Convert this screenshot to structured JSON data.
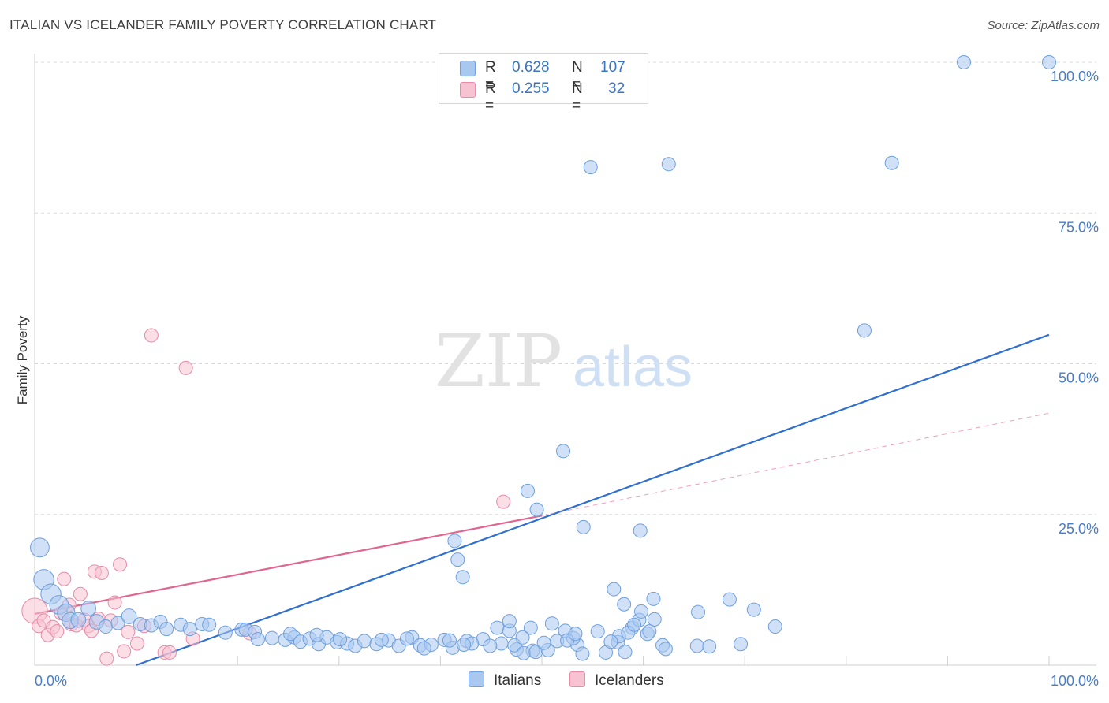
{
  "title": "ITALIAN VS ICELANDER FAMILY POVERTY CORRELATION CHART",
  "source": "Source: ZipAtlas.com",
  "watermark": {
    "zip": "ZIP",
    "atlas": "atlas"
  },
  "legend": {
    "rows": [
      {
        "r_label": "R =",
        "r_value": "0.628",
        "n_label": "N =",
        "n_value": "107"
      },
      {
        "r_label": "R =",
        "r_value": "0.255",
        "n_label": "N =",
        "n_value": "32"
      }
    ]
  },
  "bottom_legend": {
    "italians": "Italians",
    "icelanders": "Icelanders"
  },
  "colors": {
    "italians_fill": "#a9c8f0",
    "italians_stroke": "#6f9fdc",
    "italians_line": "#2f6fd0",
    "icelanders_fill": "#f7c2d2",
    "icelanders_stroke": "#e88aa8",
    "icelanders_line": "#e0668f",
    "axis_label": "#4a7cc4",
    "grid": "#d9d9d9"
  },
  "chart_data": {
    "type": "scatter",
    "title": "ITALIAN VS ICELANDER FAMILY POVERTY CORRELATION CHART",
    "xlabel": "",
    "ylabel": "Family Poverty",
    "xlim": [
      0,
      100
    ],
    "ylim": [
      0,
      100
    ],
    "x_tick_labels": [
      "0.0%",
      "100.0%"
    ],
    "y_ticks": [
      25,
      50,
      75,
      100
    ],
    "y_tick_labels": [
      "25.0%",
      "50.0%",
      "75.0%",
      "100.0%"
    ],
    "series": [
      {
        "name": "Italians",
        "R": 0.628,
        "N": 107,
        "trend": {
          "x": [
            10,
            100
          ],
          "y": [
            0,
            54.8
          ]
        },
        "points": [
          [
            0.5,
            19.5,
            1.4
          ],
          [
            0.9,
            14.2,
            1.5
          ],
          [
            1.6,
            11.8,
            1.5
          ],
          [
            2.4,
            10,
            1.4
          ],
          [
            3.1,
            8.7,
            1.3
          ],
          [
            3.5,
            7.4,
            1.2
          ],
          [
            4.3,
            7.5,
            1.1
          ],
          [
            5.3,
            9.4,
            1.1
          ],
          [
            6.1,
            7.2,
            1.1
          ],
          [
            7,
            6.4,
            1
          ],
          [
            8.2,
            7,
            1
          ],
          [
            9.3,
            8.1,
            1.1
          ],
          [
            10.4,
            6.8,
            1
          ],
          [
            11.5,
            6.6,
            1
          ],
          [
            12.4,
            7.2,
            1
          ],
          [
            13,
            6,
            1
          ],
          [
            14.4,
            6.7,
            1
          ],
          [
            15.3,
            6,
            1
          ],
          [
            16.5,
            6.8,
            1
          ],
          [
            17.2,
            6.7,
            1
          ],
          [
            18.8,
            5.4,
            1
          ],
          [
            20.4,
            5.9,
            1
          ],
          [
            20.8,
            5.9,
            1
          ],
          [
            21.7,
            5.5,
            1
          ],
          [
            22,
            4.3,
            1
          ],
          [
            23.4,
            4.5,
            1
          ],
          [
            24.7,
            4.2,
            1
          ],
          [
            25.6,
            4.6,
            1
          ],
          [
            26.2,
            3.9,
            1
          ],
          [
            27.1,
            4.4,
            1
          ],
          [
            28,
            3.5,
            1
          ],
          [
            28.8,
            4.6,
            1
          ],
          [
            29.8,
            3.8,
            1
          ],
          [
            30.8,
            3.6,
            1
          ],
          [
            31.6,
            3.2,
            1
          ],
          [
            32.5,
            4,
            1
          ],
          [
            33.7,
            3.5,
            1
          ],
          [
            34.9,
            4.1,
            1
          ],
          [
            35.9,
            3.2,
            1
          ],
          [
            37.2,
            4.6,
            1
          ],
          [
            38,
            3.3,
            1
          ],
          [
            39.1,
            3.4,
            1
          ],
          [
            40.4,
            4.2,
            1
          ],
          [
            41.2,
            2.9,
            1
          ],
          [
            42.6,
            4,
            1
          ],
          [
            44.2,
            4.3,
            1
          ],
          [
            46,
            3.6,
            1
          ],
          [
            47.5,
            2.6,
            1
          ],
          [
            49.1,
            2.4,
            1
          ],
          [
            38.4,
            2.8,
            1
          ],
          [
            43.1,
            3.6,
            1
          ],
          [
            45.6,
            6.2,
            1
          ],
          [
            46.8,
            5.7,
            1
          ],
          [
            47.3,
            3.3,
            1
          ],
          [
            48.2,
            2,
            1
          ],
          [
            49.4,
            2.2,
            1
          ],
          [
            50.6,
            2.5,
            1
          ],
          [
            51.5,
            4,
            1
          ],
          [
            52.3,
            5.7,
            1
          ],
          [
            53.5,
            3.4,
            1
          ],
          [
            54,
            1.9,
            1
          ],
          [
            56.3,
            2.1,
            1
          ],
          [
            57.5,
            3.8,
            1
          ],
          [
            58.2,
            2.2,
            1
          ],
          [
            58.9,
            6.2,
            1
          ],
          [
            59.6,
            7.5,
            1
          ],
          [
            60.4,
            5.2,
            1
          ],
          [
            61.9,
            3.3,
            1
          ],
          [
            46.8,
            7.3,
            1
          ],
          [
            48.9,
            6.2,
            1
          ],
          [
            51,
            6.9,
            1
          ],
          [
            53.1,
            4.5,
            1
          ],
          [
            55.5,
            5.6,
            1
          ],
          [
            57.6,
            4.8,
            1
          ],
          [
            52.5,
            4.1,
            1
          ],
          [
            25.2,
            5.2,
            1
          ],
          [
            27.8,
            5,
            1
          ],
          [
            30.1,
            4.3,
            1
          ],
          [
            34.2,
            4.2,
            1
          ],
          [
            36.7,
            4.4,
            1
          ],
          [
            40.9,
            4.1,
            1
          ],
          [
            42.3,
            3.4,
            1
          ],
          [
            44.9,
            3.2,
            1
          ],
          [
            48.1,
            4.6,
            1
          ],
          [
            50.2,
            3.7,
            1
          ],
          [
            53.3,
            5.2,
            1
          ],
          [
            56.8,
            3.9,
            1
          ],
          [
            58.5,
            5.4,
            1
          ],
          [
            59.1,
            6.7,
            1
          ],
          [
            61.1,
            7.6,
            1
          ],
          [
            62.2,
            2.7,
            1
          ],
          [
            65.4,
            8.8,
            1
          ],
          [
            66.5,
            3.1,
            1
          ],
          [
            68.5,
            10.9,
            1
          ],
          [
            70.9,
            9.2,
            1
          ],
          [
            73,
            6.4,
            1
          ],
          [
            61,
            11,
            1
          ],
          [
            57.1,
            12.6,
            1
          ],
          [
            58.1,
            10.1,
            1
          ],
          [
            59.8,
            8.9,
            1
          ],
          [
            60.6,
            5.6,
            1
          ],
          [
            65.3,
            3.2,
            1
          ],
          [
            69.6,
            3.5,
            1
          ],
          [
            41.4,
            20.6,
            1
          ],
          [
            41.7,
            17.5,
            1
          ],
          [
            42.2,
            14.6,
            1
          ],
          [
            48.6,
            28.9,
            1
          ],
          [
            49.5,
            25.8,
            1
          ],
          [
            52.1,
            35.5,
            1
          ],
          [
            54.1,
            22.9,
            1
          ],
          [
            59.7,
            22.3,
            1
          ],
          [
            54.8,
            82.6,
            1
          ],
          [
            62.5,
            83.1,
            1
          ],
          [
            84.5,
            83.3,
            1
          ],
          [
            81.8,
            55.5,
            1
          ],
          [
            91.6,
            100,
            1
          ],
          [
            100,
            100,
            1
          ]
        ]
      },
      {
        "name": "Icelanders",
        "R": 0.255,
        "N": 32,
        "trend": {
          "x": [
            0,
            50,
            100
          ],
          "y": [
            8.5,
            24.8,
            41.8
          ]
        },
        "points": [
          [
            0,
            9,
            1.9
          ],
          [
            0.4,
            6.5,
            1
          ],
          [
            0.9,
            7.4,
            1
          ],
          [
            1.3,
            5,
            1
          ],
          [
            1.8,
            6.3,
            1
          ],
          [
            2.2,
            5.6,
            1
          ],
          [
            2.6,
            8.6,
            1
          ],
          [
            2.9,
            14.3,
            1
          ],
          [
            3.4,
            10,
            1
          ],
          [
            3.6,
            6.8,
            1
          ],
          [
            4.1,
            6.6,
            1
          ],
          [
            4.5,
            11.8,
            1
          ],
          [
            4.9,
            7.5,
            1
          ],
          [
            5.3,
            6.5,
            1
          ],
          [
            5.6,
            5.7,
            1
          ],
          [
            5.9,
            15.5,
            1
          ],
          [
            6.3,
            7.7,
            1
          ],
          [
            6.6,
            15.3,
            1
          ],
          [
            7.1,
            1.1,
            1
          ],
          [
            7.5,
            7.4,
            1
          ],
          [
            7.9,
            10.4,
            1
          ],
          [
            8.4,
            16.7,
            1
          ],
          [
            8.8,
            2.3,
            1
          ],
          [
            9.2,
            5.5,
            1
          ],
          [
            10.1,
            3.6,
            1
          ],
          [
            10.8,
            6.5,
            1
          ],
          [
            12.8,
            2.1,
            1
          ],
          [
            13.3,
            2.1,
            1
          ],
          [
            15.6,
            4.4,
            1
          ],
          [
            21.2,
            5.3,
            1
          ],
          [
            11.5,
            54.7,
            1
          ],
          [
            14.9,
            49.3,
            1
          ],
          [
            46.2,
            27.1,
            1
          ]
        ]
      }
    ]
  }
}
